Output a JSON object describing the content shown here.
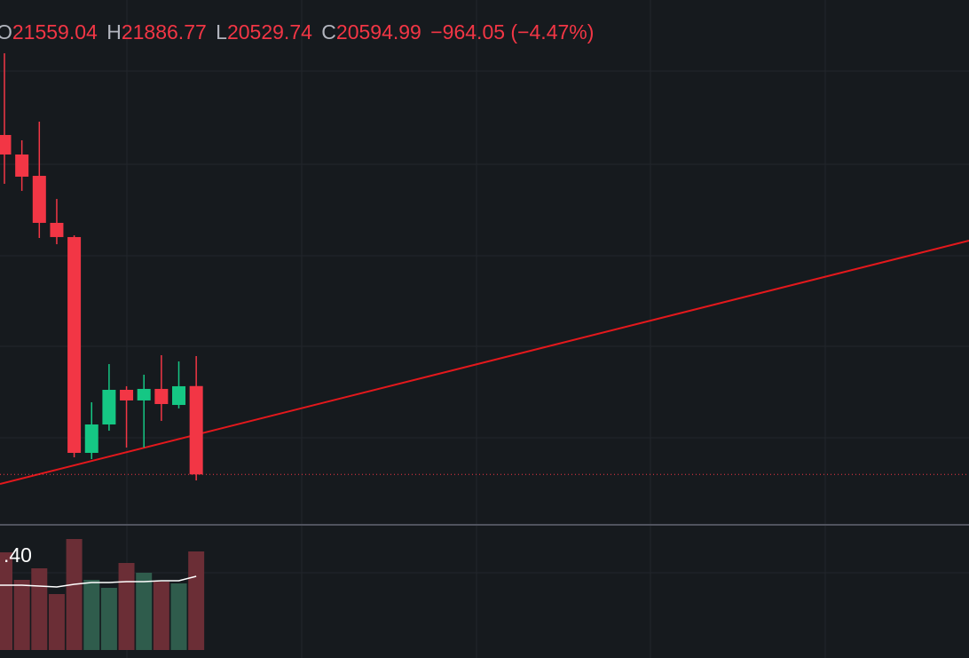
{
  "chart_data": {
    "type": "candlestick",
    "ohlc_labels": [
      "O",
      "H",
      "L",
      "C"
    ],
    "open": [
      24299,
      24086,
      23853,
      23340,
      23185,
      20830,
      21140,
      21518,
      21402,
      21528,
      21353,
      21559.04
    ],
    "high": [
      25190,
      24241,
      24445,
      23601,
      23204,
      21382,
      21799,
      21557,
      21683,
      21896,
      21828,
      21886.77
    ],
    "low": [
      23766,
      23689,
      23175,
      23107,
      20782,
      20762,
      21072,
      20888,
      20888,
      21179,
      21315,
      20529.74
    ],
    "close": [
      24086,
      23844,
      23340,
      23185,
      20830,
      21140,
      21518,
      21402,
      21528,
      21363,
      21557,
      20594.99
    ],
    "change": {
      "value": -964.05,
      "label": "−964.05"
    },
    "change_pct": {
      "value": -4.47,
      "label": "(−4.47%)"
    },
    "ylim": [
      20045,
      25772
    ],
    "up_color": "#15c784",
    "down_color": "#f23645",
    "volume": [
      110,
      79,
      92,
      63,
      125,
      79,
      70,
      98,
      87,
      77,
      75,
      111
    ],
    "volume_ma": [
      73,
      73,
      72,
      71,
      74,
      76,
      76,
      77,
      77,
      78,
      78,
      83
    ],
    "volume_lim": [
      0,
      140
    ],
    "volume_up_color": "#2f5c4c",
    "volume_down_color": "#6b2e36",
    "volume_label": ".40"
  }
}
